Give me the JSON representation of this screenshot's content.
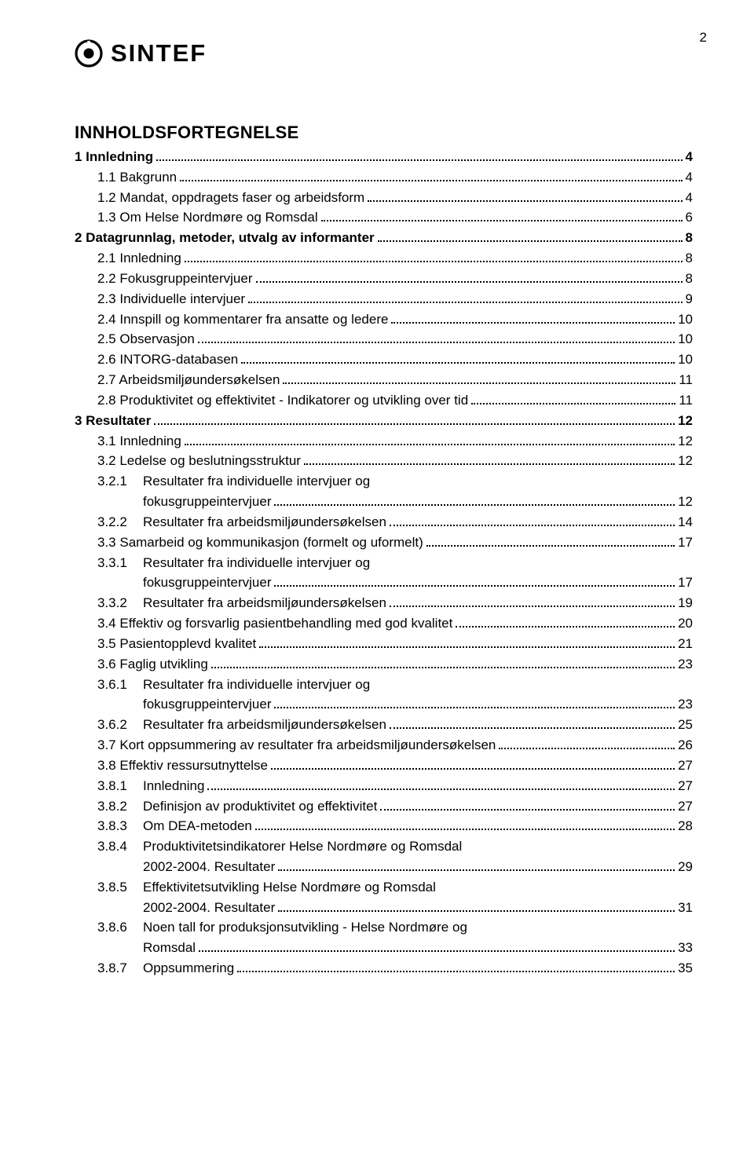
{
  "page_number": "2",
  "logo_text": "SINTEF",
  "title": "INNHOLDSFORTEGNELSE",
  "toc": [
    {
      "lvl": 1,
      "bold": true,
      "label": "1   Innledning",
      "page": "4"
    },
    {
      "lvl": 2,
      "label": "1.1 Bakgrunn",
      "page": "4"
    },
    {
      "lvl": 2,
      "label": "1.2 Mandat, oppdragets faser og arbeidsform",
      "page": "4"
    },
    {
      "lvl": 2,
      "label": "1.3 Om Helse Nordmøre og Romsdal",
      "page": "6"
    },
    {
      "lvl": 1,
      "bold": true,
      "label": "2   Datagrunnlag, metoder, utvalg av informanter",
      "page": "8"
    },
    {
      "lvl": 2,
      "label": "2.1 Innledning",
      "page": "8"
    },
    {
      "lvl": 2,
      "label": "2.2 Fokusgruppeintervjuer",
      "page": "8"
    },
    {
      "lvl": 2,
      "label": "2.3 Individuelle intervjuer",
      "page": "9"
    },
    {
      "lvl": 2,
      "label": "2.4 Innspill og kommentarer fra ansatte og ledere",
      "page": "10"
    },
    {
      "lvl": 2,
      "label": "2.5 Observasjon",
      "page": "10"
    },
    {
      "lvl": 2,
      "label": "2.6 INTORG-databasen",
      "page": "10"
    },
    {
      "lvl": 2,
      "label": "2.7 Arbeidsmiljøundersøkelsen",
      "page": "11"
    },
    {
      "lvl": 2,
      "label": "2.8 Produktivitet og effektivitet - Indikatorer og utvikling over tid",
      "page": "11"
    },
    {
      "lvl": 1,
      "bold": true,
      "label": "3   Resultater",
      "page": "12"
    },
    {
      "lvl": 2,
      "label": "3.1 Innledning",
      "page": "12"
    },
    {
      "lvl": 2,
      "label": "3.2 Ledelse og beslutningsstruktur",
      "page": "12"
    },
    {
      "lvl": 3,
      "num": "3.2.1",
      "label": "Resultater fra individuelle intervjuer og",
      "cont": "fokusgruppeintervjuer",
      "page": "12"
    },
    {
      "lvl": 3,
      "num": "3.2.2",
      "label": "Resultater fra arbeidsmiljøundersøkelsen",
      "page": "14"
    },
    {
      "lvl": 2,
      "label": "3.3 Samarbeid og kommunikasjon (formelt og uformelt)",
      "page": "17"
    },
    {
      "lvl": 3,
      "num": "3.3.1",
      "label": "Resultater fra individuelle intervjuer og",
      "cont": "fokusgruppeintervjuer",
      "page": "17"
    },
    {
      "lvl": 3,
      "num": "3.3.2",
      "label": "Resultater fra arbeidsmiljøundersøkelsen",
      "page": "19"
    },
    {
      "lvl": 2,
      "label": "3.4 Effektiv og forsvarlig pasientbehandling med god kvalitet",
      "page": "20"
    },
    {
      "lvl": 2,
      "label": "3.5 Pasientopplevd kvalitet",
      "page": "21"
    },
    {
      "lvl": 2,
      "label": "3.6 Faglig utvikling",
      "page": "23"
    },
    {
      "lvl": 3,
      "num": "3.6.1",
      "label": "Resultater fra individuelle intervjuer og",
      "cont": "fokusgruppeintervjuer",
      "page": "23"
    },
    {
      "lvl": 3,
      "num": "3.6.2",
      "label": "Resultater fra arbeidsmiljøundersøkelsen",
      "page": "25"
    },
    {
      "lvl": 2,
      "label": "3.7 Kort oppsummering av resultater fra arbeidsmiljøundersøkelsen",
      "page": "26"
    },
    {
      "lvl": 2,
      "label": "3.8 Effektiv ressursutnyttelse",
      "page": "27"
    },
    {
      "lvl": 3,
      "num": "3.8.1",
      "label": "Innledning",
      "page": "27"
    },
    {
      "lvl": 3,
      "num": "3.8.2",
      "label": "Definisjon av produktivitet og effektivitet",
      "page": "27"
    },
    {
      "lvl": 3,
      "num": "3.8.3",
      "label": "Om DEA-metoden",
      "page": "28"
    },
    {
      "lvl": 3,
      "num": "3.8.4",
      "label": "Produktivitetsindikatorer Helse Nordmøre og Romsdal",
      "cont": "2002-2004. Resultater",
      "page": "29"
    },
    {
      "lvl": 3,
      "num": "3.8.5",
      "label": "Effektivitetsutvikling Helse Nordmøre og Romsdal",
      "cont": "2002-2004. Resultater",
      "page": "31"
    },
    {
      "lvl": 3,
      "num": "3.8.6",
      "label": "Noen tall for produksjonsutvikling - Helse Nordmøre og",
      "cont": "Romsdal",
      "page": "33"
    },
    {
      "lvl": 3,
      "num": "3.8.7",
      "label": "Oppsummering",
      "page": "35"
    }
  ]
}
